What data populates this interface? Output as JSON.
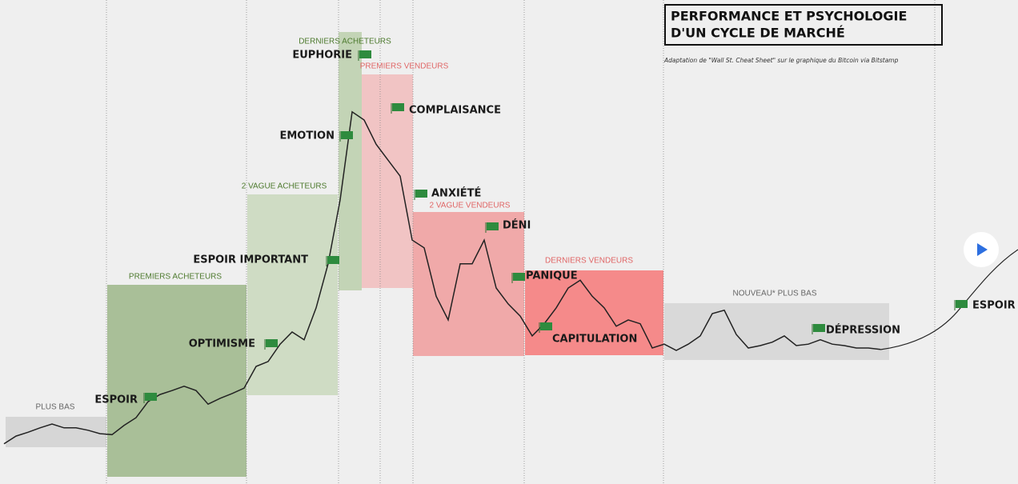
{
  "chart_data": {
    "type": "line",
    "title": [
      "PERFORMANCE ET PSYCHOLOGIE",
      "D'UN CYCLE DE MARCHÉ"
    ],
    "subtitle": "Adaptation de \"Wall St. Cheat Sheet\" sur le graphique du Bitcoin via Bitstamp",
    "zones": [
      "PLUS BAS",
      "PREMIERS ACHETEURS",
      "2 VAGUE ACHETEURS",
      "DERNIERS ACHETEURS",
      "PREMIERS VENDEURS",
      "2 VAGUE VENDEURS",
      "DERNIERS VENDEURS",
      "NOUVEAU* PLUS BAS"
    ],
    "phases": [
      "ESPOIR",
      "OPTIMISME",
      "ESPOIR IMPORTANT",
      "EMOTION",
      "EUPHORIE",
      "COMPLAISANCE",
      "ANXIÉTÉ",
      "DÉNI",
      "PANIQUE",
      "CAPITULATION",
      "DÉPRESSION",
      "ESPOIR"
    ],
    "color": "#222222",
    "ylim": [
      0,
      100
    ],
    "values": [
      8.3,
      9.9,
      10.7,
      11.6,
      12.4,
      11.6,
      11.6,
      11.1,
      10.4,
      10.2,
      12.1,
      13.7,
      17.0,
      18.5,
      19.3,
      20.2,
      19.3,
      16.5,
      17.7,
      18.7,
      19.8,
      24.3,
      25.3,
      28.9,
      31.4,
      29.8,
      36.4,
      45.5,
      58.7,
      76.9,
      75.2,
      70.2,
      66.9,
      63.6,
      50.4,
      48.8,
      38.8,
      33.9,
      45.5,
      45.5,
      50.4,
      40.5,
      37.2,
      34.7,
      30.6,
      33.1,
      36.4,
      40.5,
      42.1,
      38.8,
      36.4,
      32.6,
      33.9,
      33.1,
      28.1,
      28.9,
      27.6,
      28.9,
      30.6,
      35.2,
      35.9,
      30.9,
      28.1,
      28.6,
      29.3,
      30.6,
      28.6,
      28.9,
      29.8,
      28.9,
      28.6,
      28.1,
      28.1,
      27.8
    ]
  }
}
